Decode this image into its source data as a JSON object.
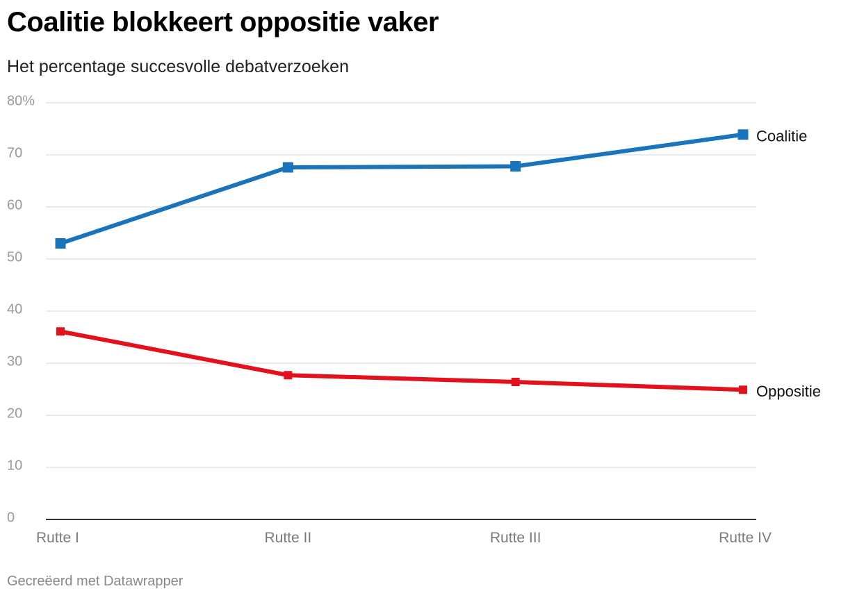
{
  "header": {
    "title": "Coalitie blokkeert oppositie vaker",
    "subtitle": "Het percentage succesvolle debatverzoeken"
  },
  "footer": {
    "credit": "Gecreëerd met Datawrapper"
  },
  "chart_data": {
    "type": "line",
    "title": "Coalitie blokkeert oppositie vaker",
    "subtitle": "Het percentage succesvolle debatverzoeken",
    "xlabel": "",
    "ylabel": "",
    "categories": [
      "Rutte I",
      "Rutte II",
      "Rutte III",
      "Rutte IV"
    ],
    "y_ticks": [
      0,
      10,
      20,
      30,
      40,
      50,
      60,
      70,
      80
    ],
    "y_tick_labels": [
      "0",
      "10",
      "20",
      "30",
      "40",
      "50",
      "60",
      "70",
      "80%"
    ],
    "ylim": [
      0,
      80
    ],
    "grid": true,
    "legend": "direct labels at line ends",
    "series": [
      {
        "name": "Coalitie",
        "color": "#1a74bb",
        "values": [
          53.0,
          67.6,
          67.8,
          73.9
        ]
      },
      {
        "name": "Oppositie",
        "color": "#e3101e",
        "values": [
          36.1,
          27.7,
          26.4,
          24.9
        ]
      }
    ]
  }
}
